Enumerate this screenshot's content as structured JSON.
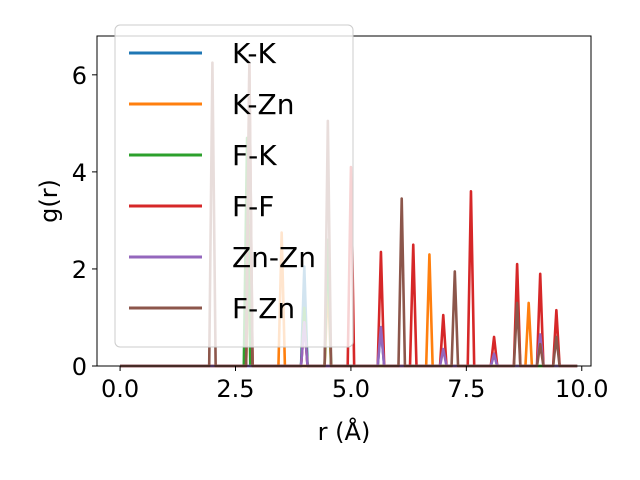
{
  "chart_data": {
    "type": "line",
    "title": "",
    "xlabel": "r (Å)",
    "ylabel": "g(r)",
    "xlim": [
      -0.5,
      10.2
    ],
    "ylim": [
      0,
      6.8
    ],
    "xticks": [
      0.0,
      2.5,
      5.0,
      7.5,
      10.0
    ],
    "xtick_labels": [
      "0.0",
      "2.5",
      "5.0",
      "7.5",
      "10.0"
    ],
    "yticks": [
      0,
      2,
      4,
      6
    ],
    "ytick_labels": [
      "0",
      "2",
      "4",
      "6"
    ],
    "grid": false,
    "legend_position": "upper-left",
    "series": [
      {
        "name": "K-K",
        "color": "#1f77b4",
        "peaks": [
          [
            3.99,
            2.05
          ],
          [
            5.65,
            0.8
          ],
          [
            8.1,
            0.25
          ]
        ]
      },
      {
        "name": "K-Zn",
        "color": "#ff7f0e",
        "peaks": [
          [
            2.8,
            2.9
          ],
          [
            3.5,
            2.75
          ],
          [
            4.5,
            1.7
          ],
          [
            6.7,
            2.3
          ],
          [
            8.85,
            1.3
          ]
        ]
      },
      {
        "name": "F-K",
        "color": "#2ca02c",
        "peaks": [
          [
            2.75,
            4.7
          ],
          [
            3.99,
            1.2
          ],
          [
            4.5,
            2.6
          ]
        ]
      },
      {
        "name": "F-F",
        "color": "#d62728",
        "peaks": [
          [
            2.8,
            6.2
          ],
          [
            3.99,
            0.9
          ],
          [
            5.0,
            4.1
          ],
          [
            5.65,
            2.35
          ],
          [
            6.35,
            2.5
          ],
          [
            7.0,
            1.05
          ],
          [
            7.6,
            3.6
          ],
          [
            8.1,
            0.6
          ],
          [
            8.6,
            2.1
          ],
          [
            9.1,
            1.9
          ],
          [
            9.45,
            1.15
          ]
        ]
      },
      {
        "name": "Zn-Zn",
        "color": "#9467bd",
        "peaks": [
          [
            3.99,
            0.9
          ],
          [
            5.65,
            0.8
          ],
          [
            7.0,
            0.35
          ],
          [
            8.1,
            0.25
          ],
          [
            9.1,
            0.65
          ]
        ]
      },
      {
        "name": "F-Zn",
        "color": "#8c564b",
        "peaks": [
          [
            2.0,
            6.25
          ],
          [
            2.8,
            6.25
          ],
          [
            4.5,
            5.05
          ],
          [
            6.1,
            3.45
          ],
          [
            7.25,
            1.95
          ],
          [
            8.6,
            1.3
          ],
          [
            9.1,
            0.45
          ],
          [
            9.45,
            0.6
          ]
        ]
      }
    ]
  }
}
